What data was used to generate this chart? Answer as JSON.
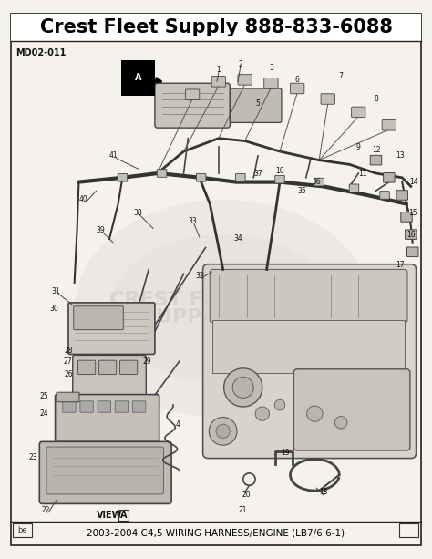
{
  "title": "Crest Fleet Supply 888-833-6088",
  "subtitle": "2003-2004 C4,5 WIRING HARNESS/ENGINE (LB7/6.6-1)",
  "doc_id": "MD02-011",
  "bg_color": "#f5f2ee",
  "title_fontsize": 15,
  "subtitle_fontsize": 7.5,
  "fig_width": 4.74,
  "fig_height": 6.13,
  "border_color": "#222222",
  "text_color": "#111111",
  "view_label": "VIEW",
  "engine_color": "#d8d4cc",
  "line_color": "#333333",
  "component_color": "#cccccc",
  "watermark_color": "#e0dcd5"
}
